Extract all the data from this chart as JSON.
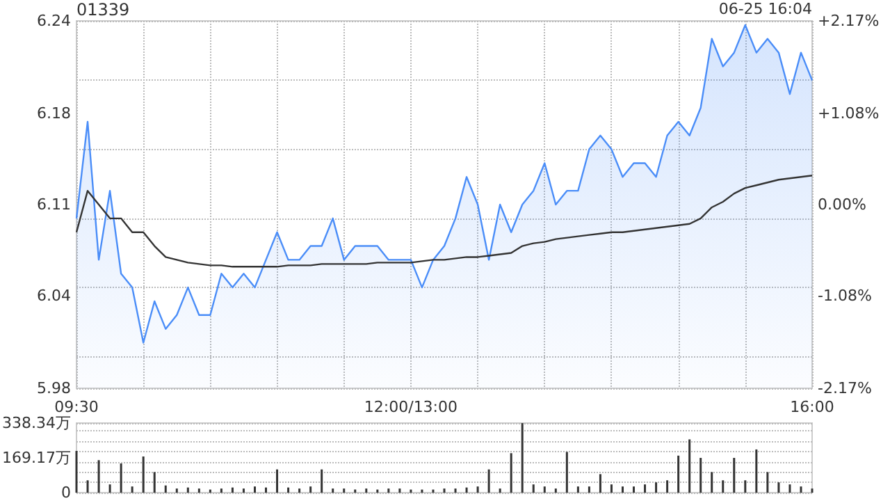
{
  "chart_data": [
    {
      "type": "area",
      "title": "01339",
      "annotations": [
        "06-25 16:04"
      ],
      "grid": true,
      "marker": "none",
      "categories": [
        "09:30",
        null,
        null,
        null,
        null,
        null,
        null,
        null,
        null,
        null,
        null,
        null,
        null,
        null,
        null,
        null,
        null,
        null,
        null,
        null,
        null,
        null,
        null,
        null,
        null,
        null,
        null,
        null,
        null,
        null,
        "12:00/13:00",
        null,
        null,
        null,
        null,
        null,
        null,
        null,
        null,
        null,
        null,
        null,
        null,
        null,
        null,
        null,
        null,
        null,
        null,
        null,
        null,
        null,
        null,
        null,
        null,
        null,
        null,
        null,
        null,
        null,
        null,
        null,
        null,
        null,
        null,
        null,
        "16:00"
      ],
      "ylim": [
        5.977,
        6.243
      ],
      "yticks": [
        {
          "value": 5.977,
          "label": "5.98"
        },
        {
          "value": 6.044,
          "label": "6.04"
        },
        {
          "value": 6.11,
          "label": "6.11"
        },
        {
          "value": 6.176,
          "label": "6.18"
        },
        {
          "value": 6.243,
          "label": "6.24"
        }
      ],
      "y2lim": [
        -2.17,
        2.17
      ],
      "y2ticks": [
        {
          "value": -2.17,
          "label": "-2.17%"
        },
        {
          "value": -1.08,
          "label": "-1.08%"
        },
        {
          "value": 0,
          "label": "0.00%"
        },
        {
          "value": 1.08,
          "label": "+1.08%"
        },
        {
          "value": 2.17,
          "label": "+2.17%"
        }
      ],
      "series": [
        {
          "type": "area",
          "color": "#4a8df8",
          "values": [
            6.1,
            6.17,
            6.07,
            6.12,
            6.06,
            6.05,
            6.01,
            6.04,
            6.02,
            6.03,
            6.05,
            6.03,
            6.03,
            6.06,
            6.05,
            6.06,
            6.05,
            6.07,
            6.09,
            6.07,
            6.07,
            6.08,
            6.08,
            6.1,
            6.07,
            6.08,
            6.08,
            6.08,
            6.07,
            6.07,
            6.07,
            6.05,
            6.07,
            6.08,
            6.1,
            6.13,
            6.11,
            6.07,
            6.11,
            6.09,
            6.11,
            6.12,
            6.14,
            6.11,
            6.12,
            6.12,
            6.15,
            6.16,
            6.15,
            6.13,
            6.14,
            6.14,
            6.13,
            6.16,
            6.17,
            6.16,
            6.18,
            6.23,
            6.21,
            6.22,
            6.24,
            6.22,
            6.23,
            6.22,
            6.19,
            6.22,
            6.2
          ]
        },
        {
          "type": "line",
          "color": "#333333",
          "values": [
            6.09,
            6.12,
            6.11,
            6.1,
            6.1,
            6.09,
            6.09,
            6.08,
            6.072,
            6.07,
            6.068,
            6.067,
            6.066,
            6.066,
            6.065,
            6.065,
            6.065,
            6.065,
            6.065,
            6.066,
            6.066,
            6.066,
            6.067,
            6.067,
            6.067,
            6.067,
            6.067,
            6.068,
            6.068,
            6.068,
            6.068,
            6.069,
            6.07,
            6.07,
            6.071,
            6.072,
            6.072,
            6.073,
            6.074,
            6.075,
            6.08,
            6.082,
            6.083,
            6.085,
            6.086,
            6.087,
            6.088,
            6.089,
            6.09,
            6.09,
            6.091,
            6.092,
            6.093,
            6.094,
            6.095,
            6.096,
            6.1,
            6.108,
            6.112,
            6.118,
            6.122,
            6.124,
            6.126,
            6.128,
            6.129,
            6.13,
            6.131
          ]
        }
      ]
    },
    {
      "type": "bar",
      "tick_labels": "y",
      "grid": "y",
      "categories": [
        null,
        null,
        null,
        null,
        null,
        null,
        null,
        null,
        null,
        null,
        null,
        null,
        null,
        null,
        null,
        null,
        null,
        null,
        null,
        null,
        null,
        null,
        null,
        null,
        null,
        null,
        null,
        null,
        null,
        null,
        null,
        null,
        null,
        null,
        null,
        null,
        null,
        null,
        null,
        null,
        null,
        null,
        null,
        null,
        null,
        null,
        null,
        null,
        null,
        null,
        null,
        null,
        null,
        null,
        null,
        null,
        null,
        null,
        null,
        null,
        null,
        null,
        null,
        null,
        null,
        null,
        null
      ],
      "ylim": [
        0,
        338.34
      ],
      "yticks": [
        0,
        {
          "value": 169.17,
          "label": "169.17万"
        },
        {
          "value": 338.34,
          "label": "338.34万"
        }
      ],
      "color": "#333333",
      "values": [
        203,
        60,
        158,
        40,
        142,
        30,
        176,
        100,
        35,
        20,
        25,
        20,
        15,
        20,
        25,
        20,
        30,
        25,
        113,
        25,
        20,
        30,
        113,
        20,
        20,
        15,
        20,
        15,
        20,
        20,
        15,
        15,
        15,
        20,
        20,
        25,
        30,
        113,
        20,
        192,
        338,
        40,
        30,
        20,
        198,
        30,
        30,
        90,
        40,
        30,
        30,
        40,
        50,
        60,
        180,
        259,
        169,
        100,
        60,
        169,
        60,
        210,
        100,
        50,
        40,
        30,
        20
      ]
    }
  ]
}
